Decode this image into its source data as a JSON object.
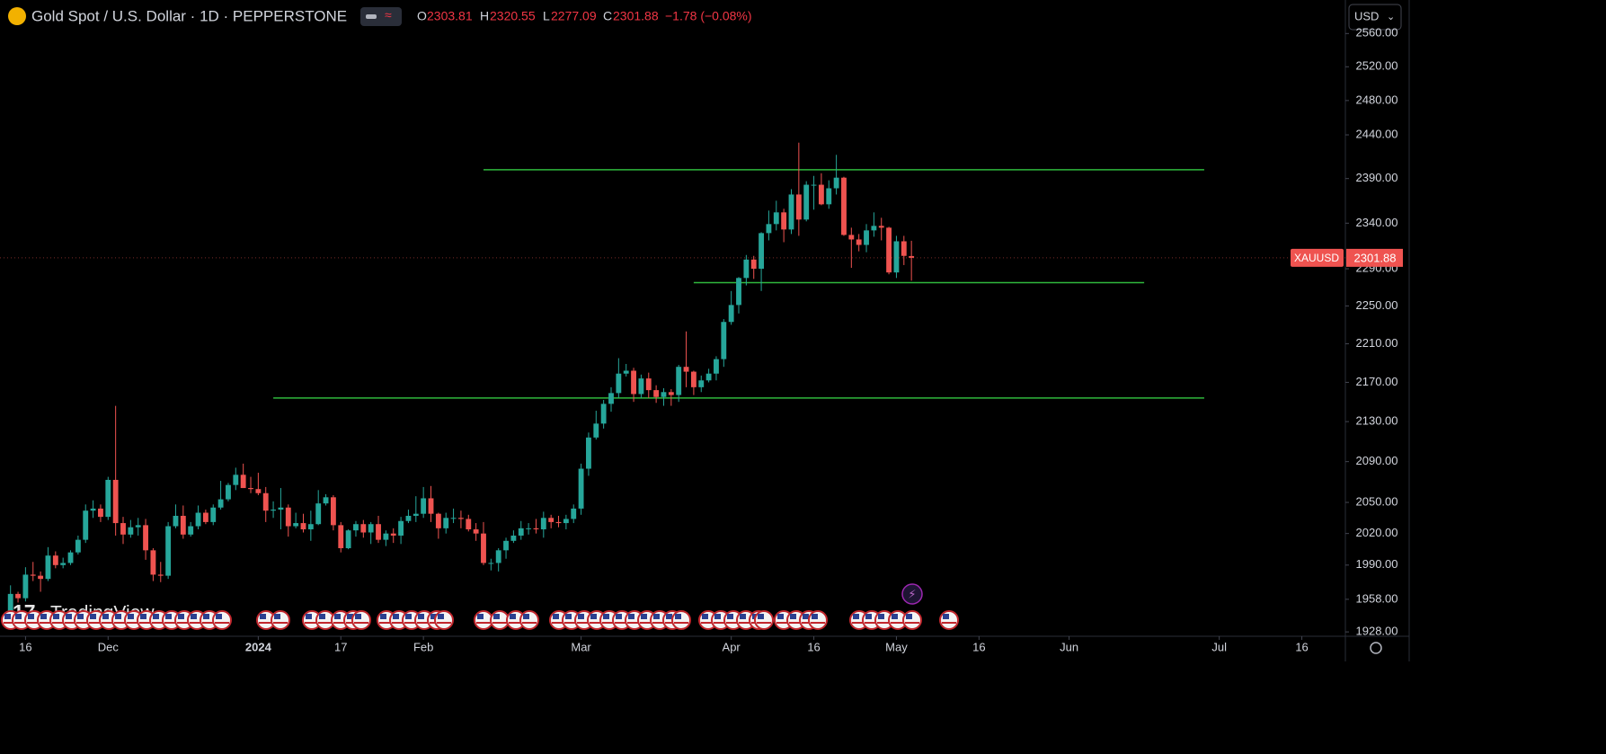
{
  "chart_data": {
    "type": "candlestick",
    "title": "Gold Spot / U.S. Dollar · 1D · PEPPERSTONE",
    "ohlc_header": {
      "o_label": "O",
      "o": 2303.81,
      "h_label": "H",
      "h": 2320.55,
      "l_label": "L",
      "l": 2277.09,
      "c_label": "C",
      "c": 2301.88,
      "change": "−1.78 (−0.08%)"
    },
    "currency": "USD",
    "symbol": "XAUUSD",
    "last_price": {
      "value": 2301.88,
      "label": "2301.88"
    },
    "watermark": "TradingView",
    "up_color": "#26a69a",
    "down_color": "#ef5350",
    "level_color": "#2fb83d",
    "log_scale": true,
    "grid": false,
    "xlim": [
      -1.4,
      177.8
    ],
    "ylim": [
      1924,
      2601
    ],
    "xticks": [
      {
        "value": 2,
        "label": "16"
      },
      {
        "value": 13,
        "label": "Dec"
      },
      {
        "value": 33,
        "label": "2024"
      },
      {
        "value": 44,
        "label": "17"
      },
      {
        "value": 55,
        "label": "Feb"
      },
      {
        "value": 76,
        "label": "Mar"
      },
      {
        "value": 96,
        "label": "Apr"
      },
      {
        "value": 107,
        "label": "16"
      },
      {
        "value": 118,
        "label": "May"
      },
      {
        "value": 129,
        "label": "16"
      },
      {
        "value": 141,
        "label": "Jun"
      },
      {
        "value": 161,
        "label": "Jul"
      },
      {
        "value": 172,
        "label": "16"
      }
    ],
    "yticks": [
      {
        "value": 2560,
        "label": "2560.00"
      },
      {
        "value": 2520,
        "label": "2520.00"
      },
      {
        "value": 2480,
        "label": "2480.00"
      },
      {
        "value": 2440,
        "label": "2440.00"
      },
      {
        "value": 2390,
        "label": "2390.00"
      },
      {
        "value": 2340,
        "label": "2340.00"
      },
      {
        "value": 2290,
        "label": "2290.00"
      },
      {
        "value": 2250,
        "label": "2250.00"
      },
      {
        "value": 2210,
        "label": "2210.00"
      },
      {
        "value": 2170,
        "label": "2170.00"
      },
      {
        "value": 2130,
        "label": "2130.00"
      },
      {
        "value": 2090,
        "label": "2090.00"
      },
      {
        "value": 2050,
        "label": "2050.00"
      },
      {
        "value": 2020,
        "label": "2020.00"
      },
      {
        "value": 1990,
        "label": "1990.00"
      },
      {
        "value": 1958,
        "label": "1958.00"
      },
      {
        "value": 1928,
        "label": "1928.00"
      }
    ],
    "levels": [
      {
        "value": 2400,
        "x": [
          63,
          159
        ]
      },
      {
        "value": 2275,
        "x": [
          91,
          151
        ]
      },
      {
        "value": 2154,
        "x": [
          35,
          159
        ]
      }
    ],
    "open": [
      1946,
      1963,
      1959,
      1981,
      1980,
      1977,
      1999,
      1990,
      1992,
      2002,
      2014,
      2042,
      2044,
      2036,
      2072,
      2030,
      2019,
      2026,
      2028,
      2004,
      1981,
      1980,
      2027,
      2037,
      2019,
      2027,
      2040,
      2031,
      2045,
      2053,
      2067,
      2077,
      2064,
      2063,
      2059,
      2042,
      2043,
      2045,
      2027,
      2030,
      2024,
      2029,
      2049,
      2055,
      2028,
      2006,
      2023,
      2029,
      2021,
      2029,
      2014,
      2020,
      2018,
      2032,
      2037,
      2039,
      2054,
      2039,
      2025,
      2035,
      2035,
      2034,
      2024,
      2020,
      1992,
      1992,
      2004,
      2013,
      2018,
      2025,
      2025,
      2024,
      2035,
      2031,
      2030,
      2034,
      2044,
      2083,
      2114,
      2128,
      2148,
      2159,
      2179,
      2182,
      2158,
      2174,
      2162,
      2155,
      2160,
      2157,
      2186,
      2181,
      2165,
      2172,
      2179,
      2194,
      2233,
      2251,
      2280,
      2300,
      2290,
      2329,
      2339,
      2352,
      2333,
      2372,
      2344,
      2383,
      2383,
      2361,
      2379,
      2391,
      2327,
      2322,
      2316,
      2332,
      2337,
      2335,
      2286,
      2320,
      2303.81
    ],
    "high": [
      1971,
      1965,
      1988,
      1993,
      1984,
      2007,
      2003,
      1997,
      2004,
      2018,
      2048,
      2052,
      2048,
      2075,
      2146,
      2036,
      2033,
      2035,
      2034,
      2006,
      1993,
      2031,
      2048,
      2047,
      2031,
      2047,
      2043,
      2048,
      2071,
      2069,
      2084,
      2088,
      2075,
      2079,
      2065,
      2051,
      2064,
      2048,
      2040,
      2039,
      2042,
      2062,
      2058,
      2057,
      2031,
      2024,
      2032,
      2033,
      2031,
      2037,
      2023,
      2025,
      2036,
      2043,
      2056,
      2065,
      2066,
      2040,
      2040,
      2044,
      2042,
      2038,
      2030,
      2031,
      1996,
      2006,
      2016,
      2023,
      2032,
      2030,
      2034,
      2041,
      2038,
      2037,
      2038,
      2048,
      2088,
      2119,
      2141,
      2152,
      2165,
      2195,
      2189,
      2185,
      2178,
      2180,
      2167,
      2164,
      2163,
      2188,
      2223,
      2182,
      2177,
      2184,
      2197,
      2236,
      2266,
      2281,
      2305,
      2304,
      2330,
      2354,
      2365,
      2356,
      2378,
      2431,
      2387,
      2393,
      2396,
      2388,
      2417,
      2392,
      2335,
      2328,
      2339,
      2352,
      2346,
      2336,
      2326,
      2326,
      2320.55
    ],
    "low": [
      1944,
      1955,
      1956,
      1975,
      1965,
      1975,
      1987,
      1987,
      1990,
      2000,
      2011,
      2035,
      2031,
      2033,
      2018,
      2010,
      2016,
      2018,
      1995,
      1975,
      1974,
      1977,
      2025,
      2015,
      2017,
      2024,
      2029,
      2028,
      2043,
      2051,
      2062,
      2064,
      2059,
      2057,
      2031,
      2035,
      2024,
      2017,
      2025,
      2021,
      2013,
      2028,
      2047,
      2023,
      2002,
      2005,
      2017,
      2016,
      2010,
      2011,
      2008,
      2011,
      2010,
      2030,
      2031,
      2035,
      2031,
      2015,
      2020,
      2030,
      2025,
      2022,
      2013,
      1990,
      1985,
      1984,
      1996,
      2011,
      2014,
      2019,
      2020,
      2016,
      2025,
      2026,
      2024,
      2030,
      2038,
      2076,
      2112,
      2123,
      2140,
      2154,
      2176,
      2150,
      2154,
      2154,
      2149,
      2146,
      2146,
      2150,
      2165,
      2157,
      2160,
      2170,
      2172,
      2186,
      2230,
      2242,
      2272,
      2279,
      2266,
      2321,
      2332,
      2319,
      2328,
      2326,
      2342,
      2355,
      2360,
      2356,
      2372,
      2326,
      2291,
      2309,
      2308,
      2325,
      2321,
      2284,
      2280,
      2294,
      2277.09
    ],
    "close": [
      1963,
      1959,
      1981,
      1980,
      1977,
      1999,
      1990,
      1992,
      2002,
      2014,
      2042,
      2044,
      2036,
      2072,
      2030,
      2019,
      2026,
      2028,
      2004,
      1981,
      1980,
      2027,
      2037,
      2019,
      2027,
      2040,
      2031,
      2045,
      2053,
      2067,
      2077,
      2064,
      2063,
      2059,
      2042,
      2043,
      2045,
      2027,
      2030,
      2024,
      2029,
      2049,
      2055,
      2028,
      2006,
      2023,
      2029,
      2021,
      2029,
      2014,
      2020,
      2018,
      2032,
      2037,
      2039,
      2054,
      2039,
      2025,
      2035,
      2035,
      2034,
      2024,
      2020,
      1992,
      1992,
      2004,
      2013,
      2018,
      2025,
      2025,
      2024,
      2035,
      2031,
      2030,
      2034,
      2044,
      2083,
      2114,
      2128,
      2148,
      2159,
      2179,
      2182,
      2158,
      2174,
      2162,
      2155,
      2160,
      2157,
      2186,
      2181,
      2165,
      2172,
      2179,
      2194,
      2233,
      2251,
      2280,
      2300,
      2290,
      2329,
      2339,
      2352,
      2333,
      2372,
      2344,
      2383,
      2383,
      2361,
      2379,
      2391,
      2327,
      2322,
      2316,
      2332,
      2337,
      2335,
      2286,
      2320,
      2304,
      2301.88
    ]
  }
}
